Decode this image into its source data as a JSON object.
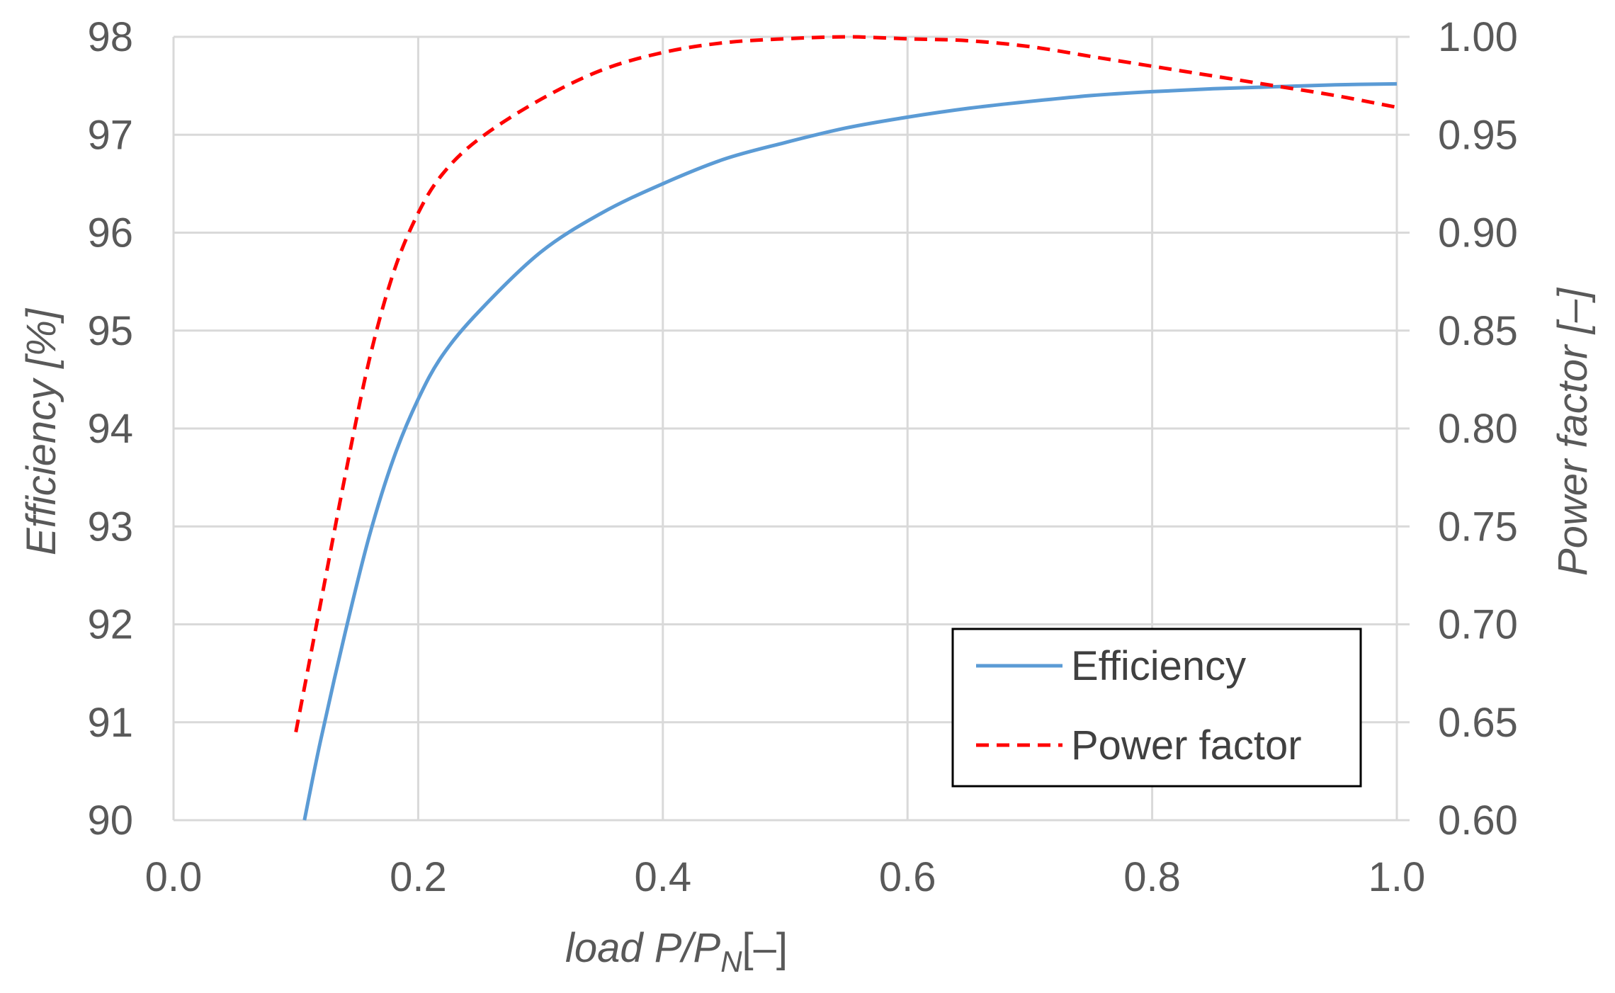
{
  "chart_data": {
    "type": "line",
    "title": "",
    "xlabel": {
      "main": "load P/P",
      "sub": "N",
      "unit": "[–]"
    },
    "ylabel": "Efficiency [%]",
    "y2label": "Power factor [–]",
    "xlim": [
      0.0,
      1.0
    ],
    "ylim": [
      90,
      98
    ],
    "y2lim": [
      0.6,
      1.0
    ],
    "x_ticks": [
      "0.0",
      "0.2",
      "0.4",
      "0.6",
      "0.8",
      "1.0"
    ],
    "y_ticks": [
      "90",
      "91",
      "92",
      "93",
      "94",
      "95",
      "96",
      "97",
      "98"
    ],
    "y2_ticks": [
      "0.60",
      "0.65",
      "0.70",
      "0.75",
      "0.80",
      "0.85",
      "0.90",
      "0.95",
      "1.00"
    ],
    "grid": true,
    "legend_position": "bottom-right",
    "series": [
      {
        "name": "Efficiency",
        "axis": "left",
        "color": "#5b9bd5",
        "style": "solid",
        "x": [
          0.107,
          0.12,
          0.14,
          0.16,
          0.18,
          0.2,
          0.22,
          0.25,
          0.3,
          0.35,
          0.4,
          0.45,
          0.5,
          0.55,
          0.6,
          0.65,
          0.7,
          0.75,
          0.8,
          0.85,
          0.9,
          0.95,
          1.0
        ],
        "y": [
          90.0,
          90.8,
          91.9,
          92.9,
          93.7,
          94.3,
          94.75,
          95.2,
          95.8,
          96.2,
          96.5,
          96.75,
          96.92,
          97.07,
          97.18,
          97.27,
          97.34,
          97.4,
          97.44,
          97.47,
          97.49,
          97.51,
          97.52
        ]
      },
      {
        "name": "Power factor",
        "axis": "right",
        "color": "#ff0000",
        "style": "dashed",
        "x": [
          0.1,
          0.12,
          0.14,
          0.16,
          0.18,
          0.2,
          0.22,
          0.25,
          0.3,
          0.35,
          0.4,
          0.45,
          0.5,
          0.55,
          0.6,
          0.65,
          0.7,
          0.75,
          0.8,
          0.85,
          0.9,
          0.95,
          1.0
        ],
        "y": [
          0.645,
          0.71,
          0.775,
          0.835,
          0.88,
          0.91,
          0.93,
          0.948,
          0.968,
          0.983,
          0.992,
          0.997,
          0.999,
          1.0,
          0.999,
          0.998,
          0.995,
          0.99,
          0.985,
          0.98,
          0.975,
          0.97,
          0.964
        ]
      }
    ]
  }
}
